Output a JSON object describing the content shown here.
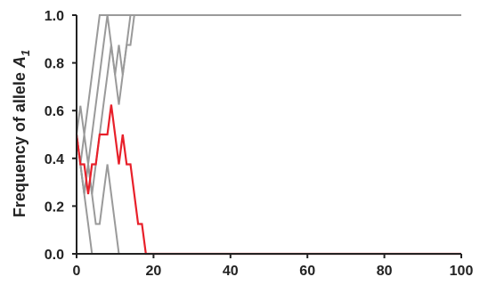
{
  "chart_data": {
    "type": "line",
    "title": "",
    "xlabel": "",
    "ylabel": {
      "prefix": "Frequency of allele ",
      "symbol": "A",
      "subscript": "1"
    },
    "xlim": [
      0,
      100
    ],
    "ylim": [
      0,
      1
    ],
    "x_ticks": [
      "0",
      "20",
      "40",
      "60",
      "80",
      "100"
    ],
    "y_ticks": [
      "0.0",
      "0.2",
      "0.4",
      "0.6",
      "0.8",
      "1.0"
    ],
    "grid": false,
    "legend": "none",
    "highlight_color": "#e8202a",
    "background_color": "#9a9a9a",
    "series": [
      {
        "color": "#9a9a9a",
        "x": [
          0,
          1,
          2,
          3,
          4,
          5,
          6,
          7,
          100
        ],
        "y": [
          0.5,
          0.62,
          0.5,
          0.625,
          0.75,
          0.875,
          1.0,
          1.0,
          1.0
        ]
      },
      {
        "color": "#9a9a9a",
        "x": [
          0,
          1,
          2,
          3,
          4,
          5,
          6,
          7,
          8,
          9,
          10,
          11,
          12,
          13,
          14,
          15,
          100
        ],
        "y": [
          0.5,
          0.375,
          0.5,
          0.375,
          0.25,
          0.375,
          0.5,
          0.625,
          0.75,
          0.875,
          0.75,
          0.875,
          0.75,
          0.875,
          0.875,
          1.0,
          1.0
        ]
      },
      {
        "color": "#9a9a9a",
        "x": [
          0,
          1,
          2,
          3,
          4,
          5,
          6,
          7,
          8,
          9,
          10,
          11,
          12,
          13,
          14,
          15,
          100
        ],
        "y": [
          0.5,
          0.375,
          0.25,
          0.375,
          0.5,
          0.625,
          0.75,
          0.875,
          1.0,
          0.875,
          0.75,
          0.625,
          0.75,
          0.875,
          1.0,
          1.0,
          1.0
        ]
      },
      {
        "color": "#9a9a9a",
        "x": [
          0,
          1,
          2,
          3,
          4,
          5,
          6,
          100
        ],
        "y": [
          0.5,
          0.375,
          0.25,
          0.125,
          0.0,
          0.0,
          0.0,
          0.0
        ]
      },
      {
        "color": "#9a9a9a",
        "x": [
          0,
          1,
          2,
          3,
          4,
          5,
          6,
          7,
          8,
          9,
          10,
          11,
          12,
          13,
          100
        ],
        "y": [
          0.5,
          0.375,
          0.25,
          0.375,
          0.25,
          0.125,
          0.125,
          0.25,
          0.375,
          0.25,
          0.125,
          0.0,
          0.0,
          0.0,
          0.0
        ]
      },
      {
        "color": "#e8202a",
        "x": [
          0,
          1,
          2,
          3,
          4,
          5,
          6,
          7,
          8,
          9,
          10,
          11,
          12,
          13,
          14,
          15,
          16,
          17,
          18,
          19,
          100
        ],
        "y": [
          0.5,
          0.375,
          0.375,
          0.25,
          0.375,
          0.375,
          0.5,
          0.5,
          0.5,
          0.625,
          0.5,
          0.375,
          0.5,
          0.375,
          0.375,
          0.25,
          0.125,
          0.125,
          0.0,
          0.0,
          0.0
        ]
      }
    ]
  }
}
